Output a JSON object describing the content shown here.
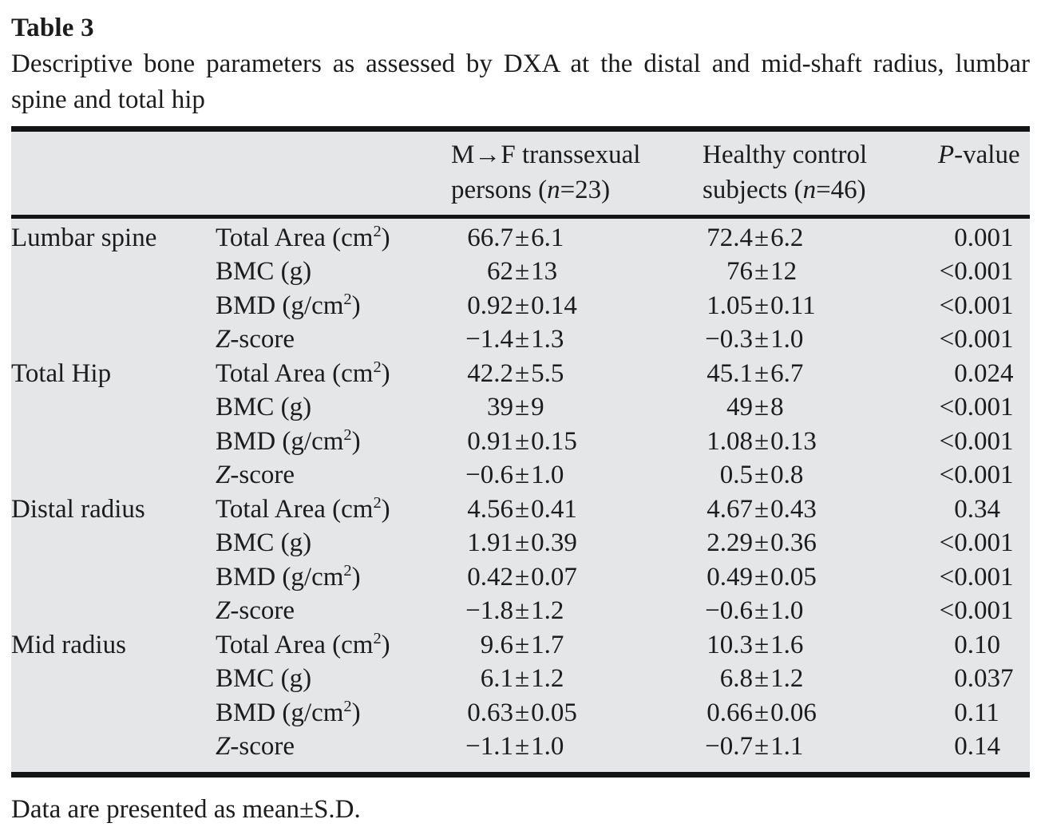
{
  "title": "Table 3",
  "caption": "Descriptive bone parameters as assessed by DXA at the distal and mid-shaft radius, lumbar spine and total hip",
  "footnote": "Data are presented as mean±S.D.",
  "symbols": {
    "plus_minus": "±",
    "decimal": "."
  },
  "header": {
    "col3_line1": "M→F transsexual",
    "col3_line2_pre": "persons (",
    "col3_line2_it": "n",
    "col3_line2_post": "=23)",
    "col4_line1": "Healthy control",
    "col4_line2_pre": "subjects (",
    "col4_line2_it": "n",
    "col4_line2_post": "=46)",
    "col5_it": "P",
    "col5_rest": "-value"
  },
  "rows": [
    {
      "site": "Lumbar spine",
      "param_it": "",
      "param": "Total Area (cm",
      "sup": "2",
      "param_end": ")",
      "g1l": "66.7",
      "g1r": "6.1",
      "g2l": "72.4",
      "g2r": "6.2",
      "pl": "0",
      "pr": "001"
    },
    {
      "site": "",
      "param_it": "",
      "param": "BMC (g)",
      "sup": "",
      "param_end": "",
      "g1l": "62",
      "g1r": "13",
      "g2l": "76",
      "g2r": "12",
      "pl": "<0",
      "pr": "001"
    },
    {
      "site": "",
      "param_it": "",
      "param": "BMD (g/cm",
      "sup": "2",
      "param_end": ")",
      "g1l": "0.92",
      "g1r": "0.14",
      "g2l": "1.05",
      "g2r": "0.11",
      "pl": "<0",
      "pr": "001"
    },
    {
      "site": "",
      "param_it": "Z",
      "param": "-score",
      "sup": "",
      "param_end": "",
      "g1l": "−1.4",
      "g1r": "1.3",
      "g2l": "−0.3",
      "g2r": "1.0",
      "pl": "<0",
      "pr": "001"
    },
    {
      "site": "Total Hip",
      "param_it": "",
      "param": "Total Area (cm",
      "sup": "2",
      "param_end": ")",
      "g1l": "42.2",
      "g1r": "5.5",
      "g2l": "45.1",
      "g2r": "6.7",
      "pl": "0",
      "pr": "024"
    },
    {
      "site": "",
      "param_it": "",
      "param": "BMC (g)",
      "sup": "",
      "param_end": "",
      "g1l": "39",
      "g1r": "9",
      "g2l": "49",
      "g2r": "8",
      "pl": "<0",
      "pr": "001"
    },
    {
      "site": "",
      "param_it": "",
      "param": "BMD (g/cm",
      "sup": "2",
      "param_end": ")",
      "g1l": "0.91",
      "g1r": "0.15",
      "g2l": "1.08",
      "g2r": "0.13",
      "pl": "<0",
      "pr": "001"
    },
    {
      "site": "",
      "param_it": "Z",
      "param": "-score",
      "sup": "",
      "param_end": "",
      "g1l": "−0.6",
      "g1r": "1.0",
      "g2l": "0.5",
      "g2r": "0.8",
      "pl": "<0",
      "pr": "001"
    },
    {
      "site": "Distal radius",
      "param_it": "",
      "param": "Total Area (cm",
      "sup": "2",
      "param_end": ")",
      "g1l": "4.56",
      "g1r": "0.41",
      "g2l": "4.67",
      "g2r": "0.43",
      "pl": "0",
      "pr": "34"
    },
    {
      "site": "",
      "param_it": "",
      "param": "BMC (g)",
      "sup": "",
      "param_end": "",
      "g1l": "1.91",
      "g1r": "0.39",
      "g2l": "2.29",
      "g2r": "0.36",
      "pl": "<0",
      "pr": "001"
    },
    {
      "site": "",
      "param_it": "",
      "param": "BMD (g/cm",
      "sup": "2",
      "param_end": ")",
      "g1l": "0.42",
      "g1r": "0.07",
      "g2l": "0.49",
      "g2r": "0.05",
      "pl": "<0",
      "pr": "001"
    },
    {
      "site": "",
      "param_it": "Z",
      "param": "-score",
      "sup": "",
      "param_end": "",
      "g1l": "−1.8",
      "g1r": "1.2",
      "g2l": "−0.6",
      "g2r": "1.0",
      "pl": "<0",
      "pr": "001"
    },
    {
      "site": "Mid radius",
      "param_it": "",
      "param": "Total Area (cm",
      "sup": "2",
      "param_end": ")",
      "g1l": "9.6",
      "g1r": "1.7",
      "g2l": "10.3",
      "g2r": "1.6",
      "pl": "0",
      "pr": "10"
    },
    {
      "site": "",
      "param_it": "",
      "param": "BMC (g)",
      "sup": "",
      "param_end": "",
      "g1l": "6.1",
      "g1r": "1.2",
      "g2l": "6.8",
      "g2r": "1.2",
      "pl": "0",
      "pr": "037"
    },
    {
      "site": "",
      "param_it": "",
      "param": "BMD (g/cm",
      "sup": "2",
      "param_end": ")",
      "g1l": "0.63",
      "g1r": "0.05",
      "g2l": "0.66",
      "g2r": "0.06",
      "pl": "0",
      "pr": "11"
    },
    {
      "site": "",
      "param_it": "Z",
      "param": "-score",
      "sup": "",
      "param_end": "",
      "g1l": "−1.1",
      "g1r": "1.0",
      "g2l": "−0.7",
      "g2r": "1.1",
      "pl": "0",
      "pr": "14"
    }
  ]
}
